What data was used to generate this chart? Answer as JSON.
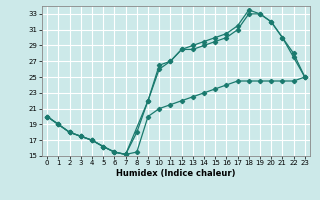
{
  "xlabel": "Humidex (Indice chaleur)",
  "xlim": [
    -0.5,
    23.5
  ],
  "ylim": [
    15,
    34
  ],
  "yticks": [
    15,
    17,
    19,
    21,
    23,
    25,
    27,
    29,
    31,
    33
  ],
  "xticks": [
    0,
    1,
    2,
    3,
    4,
    5,
    6,
    7,
    8,
    9,
    10,
    11,
    12,
    13,
    14,
    15,
    16,
    17,
    18,
    19,
    20,
    21,
    22,
    23
  ],
  "bg_color": "#cce9e9",
  "grid_color": "#ffffff",
  "line_color": "#1a7a6e",
  "line1_x": [
    0,
    1,
    2,
    3,
    4,
    5,
    6,
    7,
    8,
    9,
    10,
    11,
    12,
    13,
    14,
    15,
    16,
    17,
    18,
    19,
    20,
    21,
    22,
    23
  ],
  "line1_y": [
    20,
    19,
    18,
    17.5,
    17,
    16.2,
    15.5,
    15.2,
    15.5,
    20,
    21,
    21.5,
    22,
    22.5,
    23,
    23.5,
    24,
    24.5,
    24.5,
    24.5,
    24.5,
    24.5,
    24.5,
    25
  ],
  "line2_x": [
    0,
    1,
    2,
    3,
    4,
    5,
    6,
    7,
    8,
    9,
    10,
    11,
    12,
    13,
    14,
    15,
    16,
    17,
    18,
    19,
    20,
    21,
    22,
    23
  ],
  "line2_y": [
    20,
    19,
    18,
    17.5,
    17,
    16.2,
    15.5,
    15.2,
    18,
    22,
    26,
    27,
    28.5,
    28.5,
    29,
    29.5,
    30,
    31,
    33,
    33,
    32,
    30,
    27.5,
    25
  ],
  "line3_x": [
    0,
    1,
    2,
    3,
    4,
    5,
    6,
    7,
    9,
    10,
    11,
    12,
    13,
    14,
    15,
    16,
    17,
    18,
    19,
    20,
    21,
    22,
    23
  ],
  "line3_y": [
    20,
    19,
    18,
    17.5,
    17,
    16.2,
    15.5,
    15.2,
    22,
    26.5,
    27,
    28.5,
    29,
    29.5,
    30,
    30.5,
    31.5,
    33.5,
    33,
    32,
    30,
    28,
    25
  ]
}
